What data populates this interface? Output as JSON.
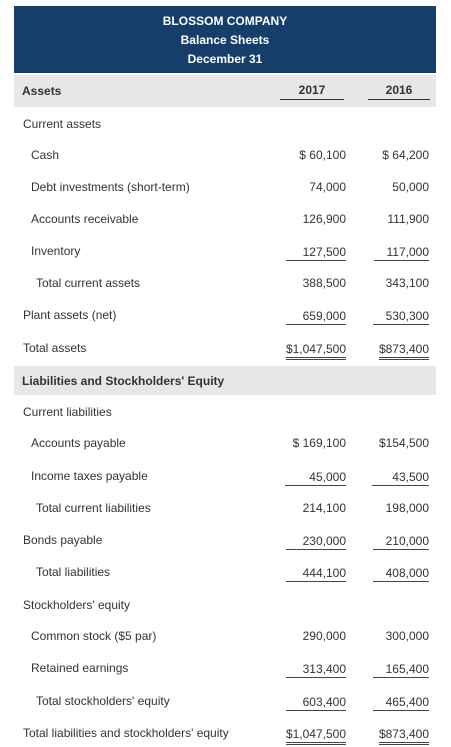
{
  "header": {
    "company": "BLOSSOM COMPANY",
    "statement": "Balance Sheets",
    "date": "December 31"
  },
  "columns": {
    "label": "Assets",
    "year1": "2017",
    "year2": "2016"
  },
  "assets": {
    "current_title": "Current assets",
    "rows": [
      {
        "label": "Cash",
        "v2017": "$ 60,100",
        "v2016": "$ 64,200"
      },
      {
        "label": "Debt investments (short-term)",
        "v2017": "74,000",
        "v2016": "50,000"
      },
      {
        "label": "Accounts receivable",
        "v2017": "126,900",
        "v2016": "111,900"
      },
      {
        "label": "Inventory",
        "v2017": "127,500",
        "v2016": "117,000"
      },
      {
        "label": "Total current assets",
        "v2017": "388,500",
        "v2016": "343,100"
      },
      {
        "label": "Plant assets (net)",
        "v2017": "659,000",
        "v2016": "530,300"
      },
      {
        "label": "Total assets",
        "v2017": "$1,047,500",
        "v2016": "$873,400"
      }
    ]
  },
  "liabilities": {
    "section_title": "Liabilities and Stockholders' Equity",
    "current_title": "Current liabilities",
    "rows": [
      {
        "label": "Accounts payable",
        "v2017": "$ 169,100",
        "v2016": "$154,500"
      },
      {
        "label": "Income taxes payable",
        "v2017": "45,000",
        "v2016": "43,500"
      },
      {
        "label": "Total current liabilities",
        "v2017": "214,100",
        "v2016": "198,000"
      },
      {
        "label": "Bonds payable",
        "v2017": "230,000",
        "v2016": "210,000"
      },
      {
        "label": "Total liabilities",
        "v2017": "444,100",
        "v2016": "408,000"
      }
    ],
    "equity_title": "Stockholders' equity",
    "equity_rows": [
      {
        "label": "Common stock ($5 par)",
        "v2017": "290,000",
        "v2016": "300,000"
      },
      {
        "label": "Retained earnings",
        "v2017": "313,400",
        "v2016": "165,400"
      },
      {
        "label": "Total stockholders' equity",
        "v2017": "603,400",
        "v2016": "465,400"
      },
      {
        "label": "Total liabilities and stockholders' equity",
        "v2017": "$1,047,500",
        "v2016": "$873,400"
      }
    ]
  }
}
